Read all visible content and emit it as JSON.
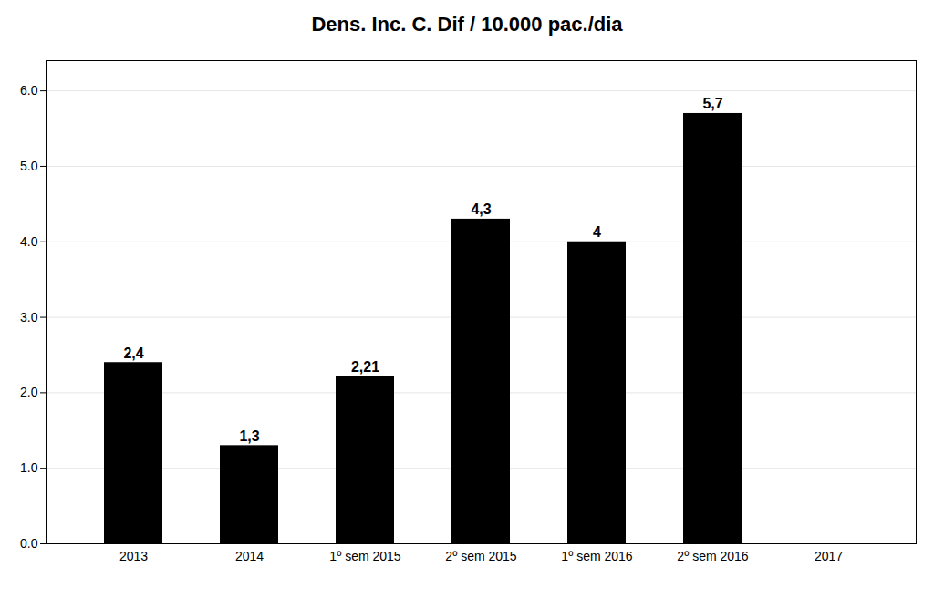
{
  "chart_data": {
    "type": "bar",
    "title": "Dens. Inc. C. Dif / 10.000 pac./dia",
    "categories": [
      "2013",
      "2014",
      "1º sem 2015",
      "2º sem 2015",
      "1º sem 2016",
      "2º sem 2016",
      "2017"
    ],
    "values": [
      2.4,
      1.3,
      2.21,
      4.3,
      4.0,
      5.7,
      0.0
    ],
    "value_labels": [
      "2,4",
      "1,3",
      "2,21",
      "4,3",
      "4",
      "5,7",
      null
    ],
    "data_labels": true,
    "ylim": [
      0,
      6.4
    ],
    "yticks": [
      0,
      1,
      2,
      3,
      4,
      5,
      6
    ],
    "grid": true
  }
}
